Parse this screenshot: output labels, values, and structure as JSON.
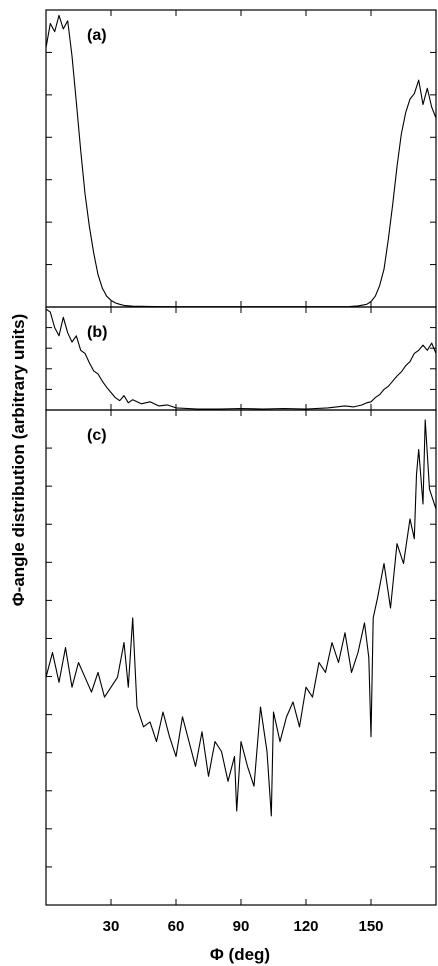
{
  "chart_data": {
    "type": "line",
    "xlabel": "Φ (deg)",
    "ylabel": "Φ-angle distribution (arbitrary units)",
    "xlim": [
      0,
      180
    ],
    "xticks": [
      30,
      60,
      90,
      120,
      150
    ],
    "grid": false,
    "panels": [
      {
        "label": "(a)",
        "ylim": [
          0,
          1.1
        ],
        "x": [
          0,
          2,
          4,
          6,
          8,
          10,
          12,
          14,
          16,
          18,
          20,
          22,
          24,
          26,
          28,
          30,
          32,
          34,
          36,
          40,
          50,
          60,
          70,
          80,
          90,
          100,
          110,
          120,
          130,
          140,
          144,
          148,
          150,
          152,
          154,
          156,
          158,
          160,
          162,
          164,
          166,
          168,
          170,
          172,
          174,
          176,
          178,
          180
        ],
        "y": [
          0.96,
          1.05,
          1.02,
          1.08,
          1.03,
          1.06,
          0.93,
          0.76,
          0.58,
          0.42,
          0.3,
          0.2,
          0.12,
          0.07,
          0.04,
          0.025,
          0.015,
          0.01,
          0.006,
          0.003,
          0.002,
          0.001,
          0.001,
          0.001,
          0.001,
          0.001,
          0.001,
          0.001,
          0.001,
          0.002,
          0.004,
          0.01,
          0.02,
          0.04,
          0.08,
          0.14,
          0.25,
          0.38,
          0.52,
          0.64,
          0.72,
          0.77,
          0.79,
          0.84,
          0.75,
          0.81,
          0.74,
          0.7
        ]
      },
      {
        "label": "(b)",
        "ylim": [
          0,
          1.0
        ],
        "x": [
          0,
          2,
          4,
          6,
          8,
          10,
          12,
          14,
          16,
          18,
          20,
          22,
          24,
          26,
          28,
          30,
          32,
          34,
          36,
          38,
          40,
          44,
          48,
          52,
          56,
          60,
          70,
          80,
          90,
          100,
          110,
          120,
          130,
          138,
          142,
          146,
          148,
          150,
          152,
          154,
          156,
          158,
          160,
          162,
          164,
          166,
          168,
          170,
          172,
          174,
          176,
          178,
          180
        ],
        "y": [
          0.98,
          0.95,
          0.8,
          0.72,
          0.9,
          0.75,
          0.66,
          0.72,
          0.58,
          0.55,
          0.46,
          0.38,
          0.35,
          0.28,
          0.22,
          0.17,
          0.12,
          0.09,
          0.14,
          0.07,
          0.1,
          0.06,
          0.08,
          0.04,
          0.05,
          0.02,
          0.01,
          0.01,
          0.015,
          0.01,
          0.015,
          0.01,
          0.02,
          0.04,
          0.03,
          0.05,
          0.07,
          0.08,
          0.12,
          0.15,
          0.2,
          0.23,
          0.28,
          0.33,
          0.37,
          0.43,
          0.47,
          0.55,
          0.58,
          0.63,
          0.58,
          0.65,
          0.55
        ]
      },
      {
        "label": "(c)",
        "ylim": [
          0,
          1.0
        ],
        "x": [
          0,
          3,
          6,
          9,
          12,
          15,
          18,
          21,
          24,
          27,
          30,
          33,
          36,
          38,
          40,
          42,
          45,
          48,
          51,
          54,
          57,
          60,
          63,
          66,
          69,
          72,
          75,
          78,
          81,
          84,
          87,
          88,
          90,
          93,
          96,
          99,
          102,
          104,
          105,
          108,
          111,
          114,
          117,
          120,
          123,
          126,
          129,
          132,
          135,
          138,
          141,
          144,
          147,
          149,
          150,
          151,
          153,
          156,
          159,
          162,
          165,
          168,
          170,
          171,
          172,
          174,
          175,
          177,
          180
        ],
        "y": [
          0.46,
          0.51,
          0.45,
          0.52,
          0.44,
          0.49,
          0.46,
          0.43,
          0.47,
          0.42,
          0.44,
          0.46,
          0.53,
          0.44,
          0.58,
          0.4,
          0.36,
          0.37,
          0.33,
          0.39,
          0.34,
          0.3,
          0.38,
          0.33,
          0.28,
          0.35,
          0.26,
          0.33,
          0.31,
          0.25,
          0.3,
          0.19,
          0.33,
          0.28,
          0.24,
          0.4,
          0.31,
          0.18,
          0.39,
          0.33,
          0.38,
          0.41,
          0.36,
          0.44,
          0.42,
          0.49,
          0.47,
          0.53,
          0.49,
          0.55,
          0.47,
          0.51,
          0.57,
          0.5,
          0.34,
          0.58,
          0.62,
          0.69,
          0.6,
          0.73,
          0.69,
          0.78,
          0.74,
          0.87,
          0.92,
          0.81,
          0.98,
          0.84,
          0.8
        ]
      }
    ]
  }
}
